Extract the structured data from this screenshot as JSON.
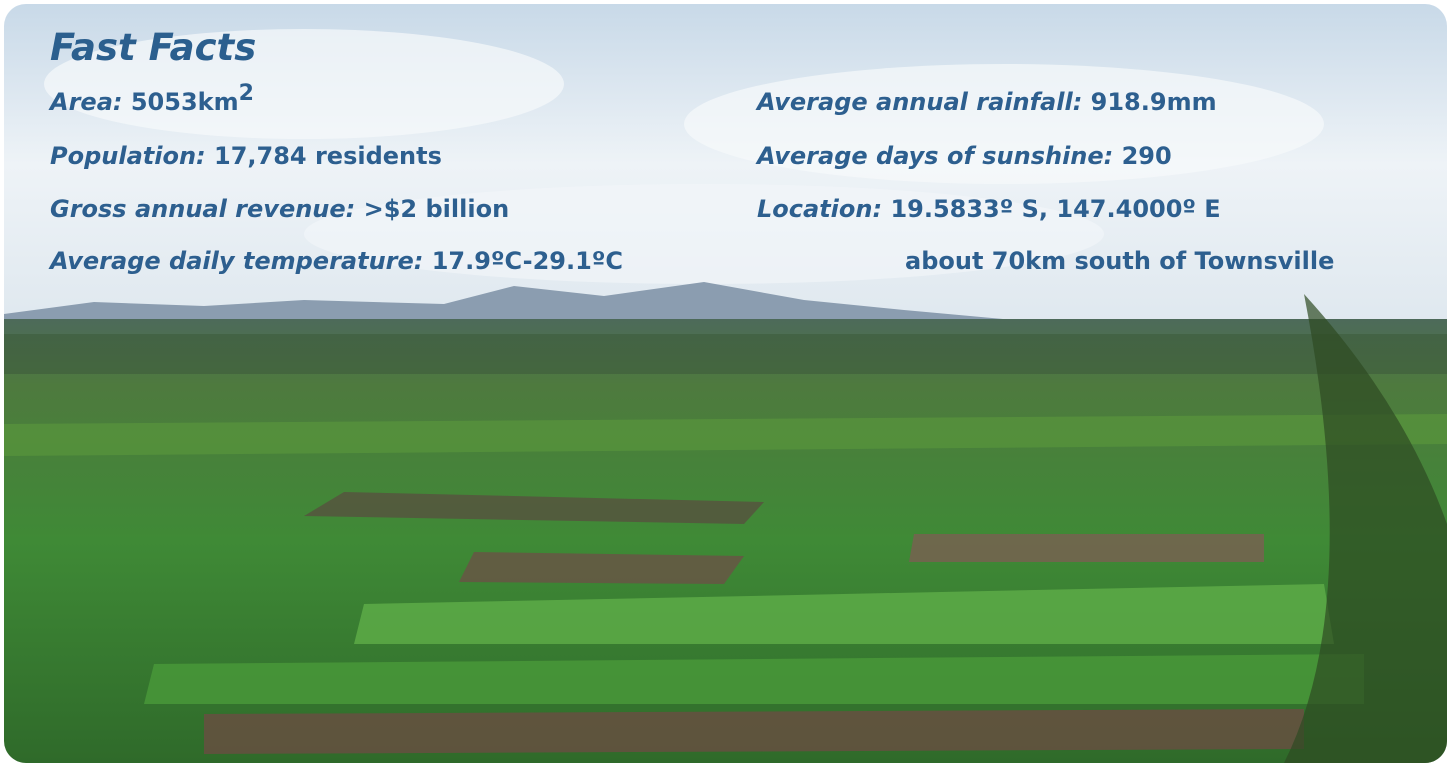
{
  "title": "Fast Facts",
  "left_facts": [
    {
      "label": "Area:",
      "value": "5053km",
      "sup": "2"
    },
    {
      "label": "Population:",
      "value": "17,784 residents"
    },
    {
      "label": "Gross annual revenue:",
      "value": ">$2 billion"
    },
    {
      "label": "Average daily temperature:",
      "value": "17.9ºC-29.1ºC"
    }
  ],
  "right_facts": [
    {
      "label": "Average annual rainfall:",
      "value": "918.9mm"
    },
    {
      "label": "Average days of sunshine:",
      "value": "290"
    },
    {
      "label": "Location:",
      "value": "19.5833º S, 147.4000º E"
    }
  ],
  "location_note": "about 70km south of Townsville"
}
